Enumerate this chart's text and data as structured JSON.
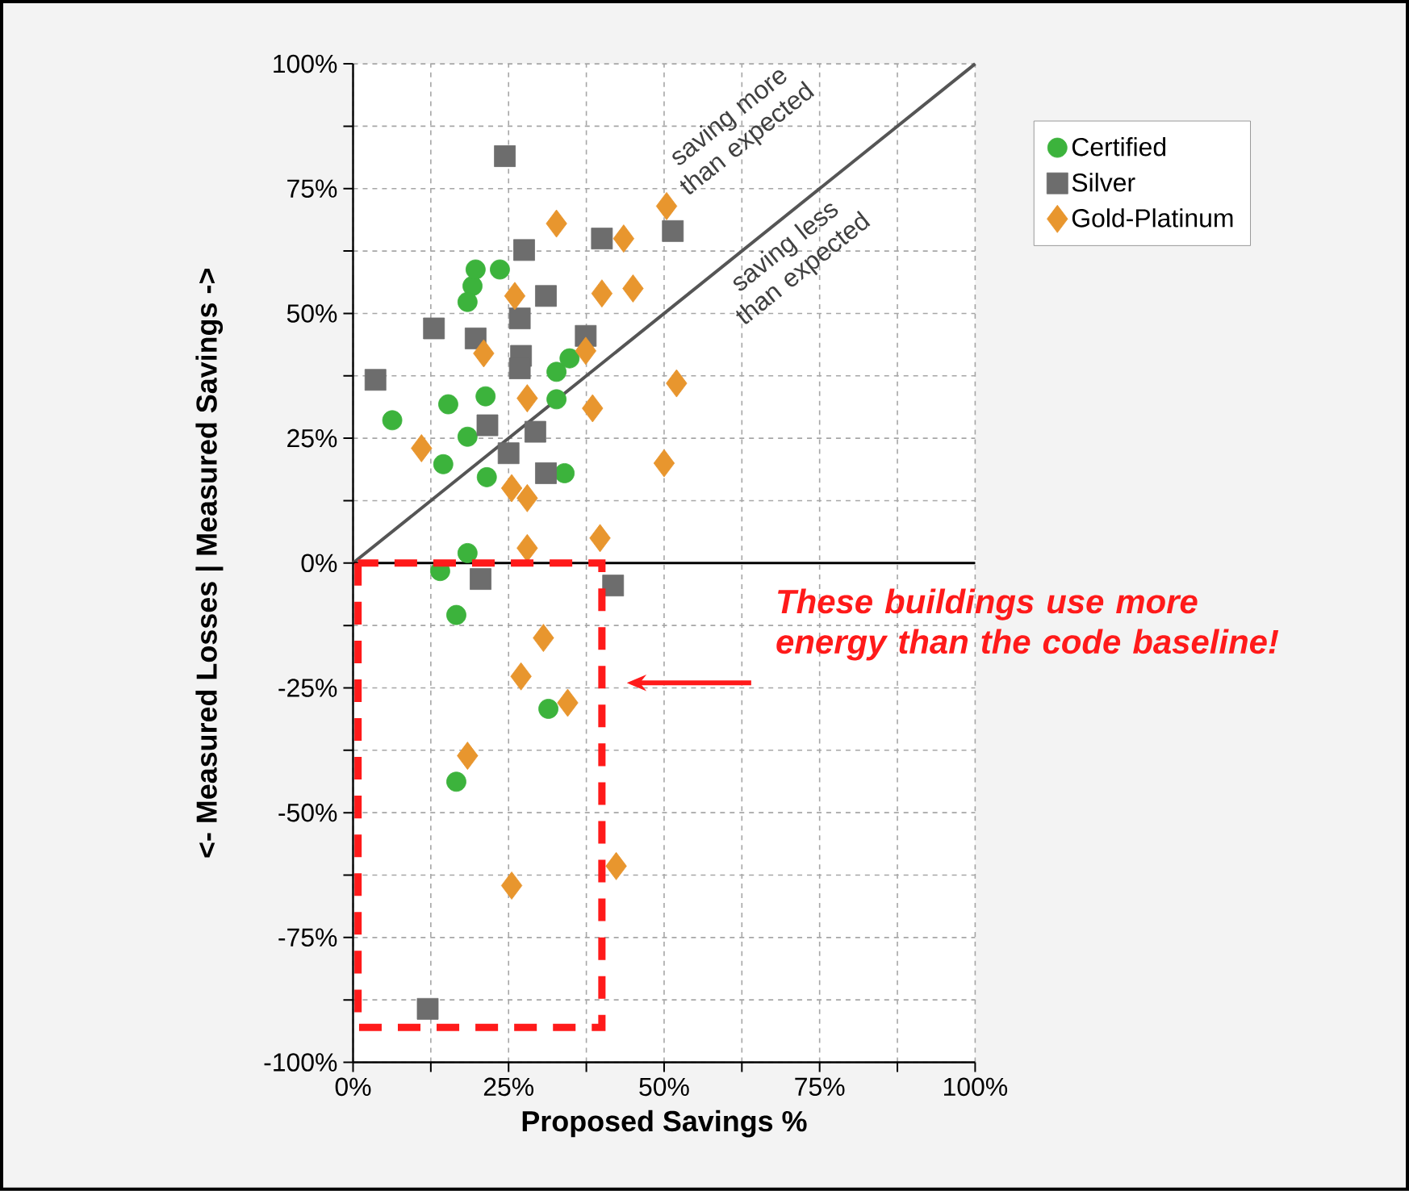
{
  "chart_data": {
    "type": "scatter",
    "xlabel": "Proposed Savings %",
    "ylabel": "<- Measured Losses | Measured Savings ->",
    "xlim": [
      0,
      100
    ],
    "ylim": [
      -100,
      100
    ],
    "xticks": [
      {
        "value": 0,
        "label": "0%"
      },
      {
        "value": 25,
        "label": "25%"
      },
      {
        "value": 50,
        "label": "50%"
      },
      {
        "value": 75,
        "label": "75%"
      },
      {
        "value": 100,
        "label": "100%"
      }
    ],
    "yticks": [
      {
        "value": -100,
        "label": "-100%"
      },
      {
        "value": -75,
        "label": "-75%"
      },
      {
        "value": -50,
        "label": "-50%"
      },
      {
        "value": -25,
        "label": "-25%"
      },
      {
        "value": 0,
        "label": "0%"
      },
      {
        "value": 25,
        "label": "25%"
      },
      {
        "value": 50,
        "label": "50%"
      },
      {
        "value": 75,
        "label": "75%"
      },
      {
        "value": 100,
        "label": "100%"
      }
    ],
    "grid": true,
    "legend": "top right",
    "series": [
      {
        "name": "Certified",
        "color": "#3cb33c",
        "marker": "circle",
        "x": [
          6.3,
          15.3,
          21.3,
          14.5,
          18.4,
          21.5,
          32.7,
          34.8,
          32.7,
          34,
          19.2,
          23.6,
          18.4,
          19.7,
          14,
          18.4,
          16.6,
          31.4,
          16.6
        ],
        "values": [
          28.6,
          31.8,
          33.4,
          19.8,
          25.3,
          17.2,
          38.3,
          41,
          32.8,
          18,
          55.5,
          58.8,
          52.3,
          58.8,
          -1.6,
          2,
          -10.4,
          -29.2,
          -43.8
        ]
      },
      {
        "name": "Silver",
        "color": "#6d6d6d",
        "marker": "square",
        "x": [
          24.4,
          27.5,
          40,
          51.4,
          31,
          26.8,
          13,
          19.7,
          37.4,
          27,
          26.8,
          3.6,
          21.6,
          29.3,
          25,
          31,
          20.5,
          41.8,
          12
        ],
        "values": [
          81.5,
          62.7,
          65,
          66.5,
          53.5,
          49,
          47,
          45,
          45.5,
          41.5,
          39,
          36.7,
          27.6,
          26.3,
          22,
          18,
          -3.2,
          -4.5,
          -89.3
        ]
      },
      {
        "name": "Gold-Platinum",
        "color": "#e8962e",
        "marker": "diamond",
        "x": [
          32.7,
          43.5,
          26,
          40,
          45,
          21,
          37.4,
          28,
          38.5,
          11,
          25.5,
          28,
          39.7,
          28,
          50.4,
          52,
          50,
          30.6,
          27,
          34.5,
          18.4,
          25.5,
          42.3
        ],
        "values": [
          68,
          65,
          53.5,
          54,
          55,
          42,
          42.5,
          33,
          31,
          23,
          15,
          13,
          5,
          3,
          71.5,
          36,
          20,
          -15,
          -22.7,
          -28,
          -38.6,
          -64.6,
          -60.7
        ]
      },
      {
        "type": "line",
        "color": "#555555",
        "line_style": "solid",
        "x": [
          0,
          100
        ],
        "values": [
          0,
          100
        ]
      }
    ],
    "ref_lines": [
      {
        "axis": "y",
        "value": 0,
        "color": "#000000"
      }
    ],
    "annotations": [
      "saving more than expected",
      "saving less than expected",
      "These buildings use more energy than the code baseline!"
    ]
  }
}
